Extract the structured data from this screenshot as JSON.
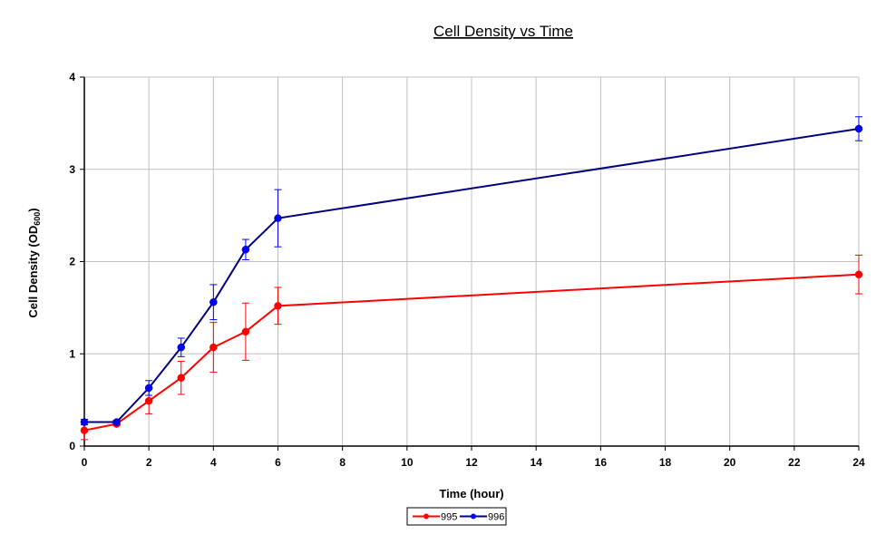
{
  "chart_data": {
    "type": "line",
    "title": "Cell Density vs Time",
    "xlabel": "Time (hour)",
    "ylabel_main": "Cell Density (OD",
    "ylabel_sub": "600",
    "ylabel_end": ")",
    "xlim": [
      0,
      24
    ],
    "ylim": [
      0,
      4
    ],
    "xticks": [
      0,
      2,
      4,
      6,
      8,
      10,
      12,
      14,
      16,
      18,
      20,
      22,
      24
    ],
    "yticks": [
      0,
      1,
      2,
      3,
      4
    ],
    "grid": true,
    "legend_position": "bottom",
    "x": [
      0,
      1,
      2,
      3,
      4,
      5,
      6,
      24
    ],
    "series": [
      {
        "name": "995",
        "line_color": "#FF0000",
        "marker_color": "#FF0000",
        "values": [
          0.17,
          0.24,
          0.49,
          0.74,
          1.07,
          1.24,
          1.52,
          1.86
        ],
        "errors": [
          0.1,
          0.02,
          0.14,
          0.18,
          0.27,
          0.31,
          0.2,
          0.21
        ]
      },
      {
        "name": "996",
        "line_color": "#000080",
        "marker_color": "#0000FF",
        "values": [
          0.26,
          0.26,
          0.63,
          1.07,
          1.56,
          2.13,
          2.47,
          3.44
        ],
        "errors": [
          0.03,
          0.02,
          0.08,
          0.1,
          0.19,
          0.11,
          0.31,
          0.13
        ]
      }
    ]
  }
}
